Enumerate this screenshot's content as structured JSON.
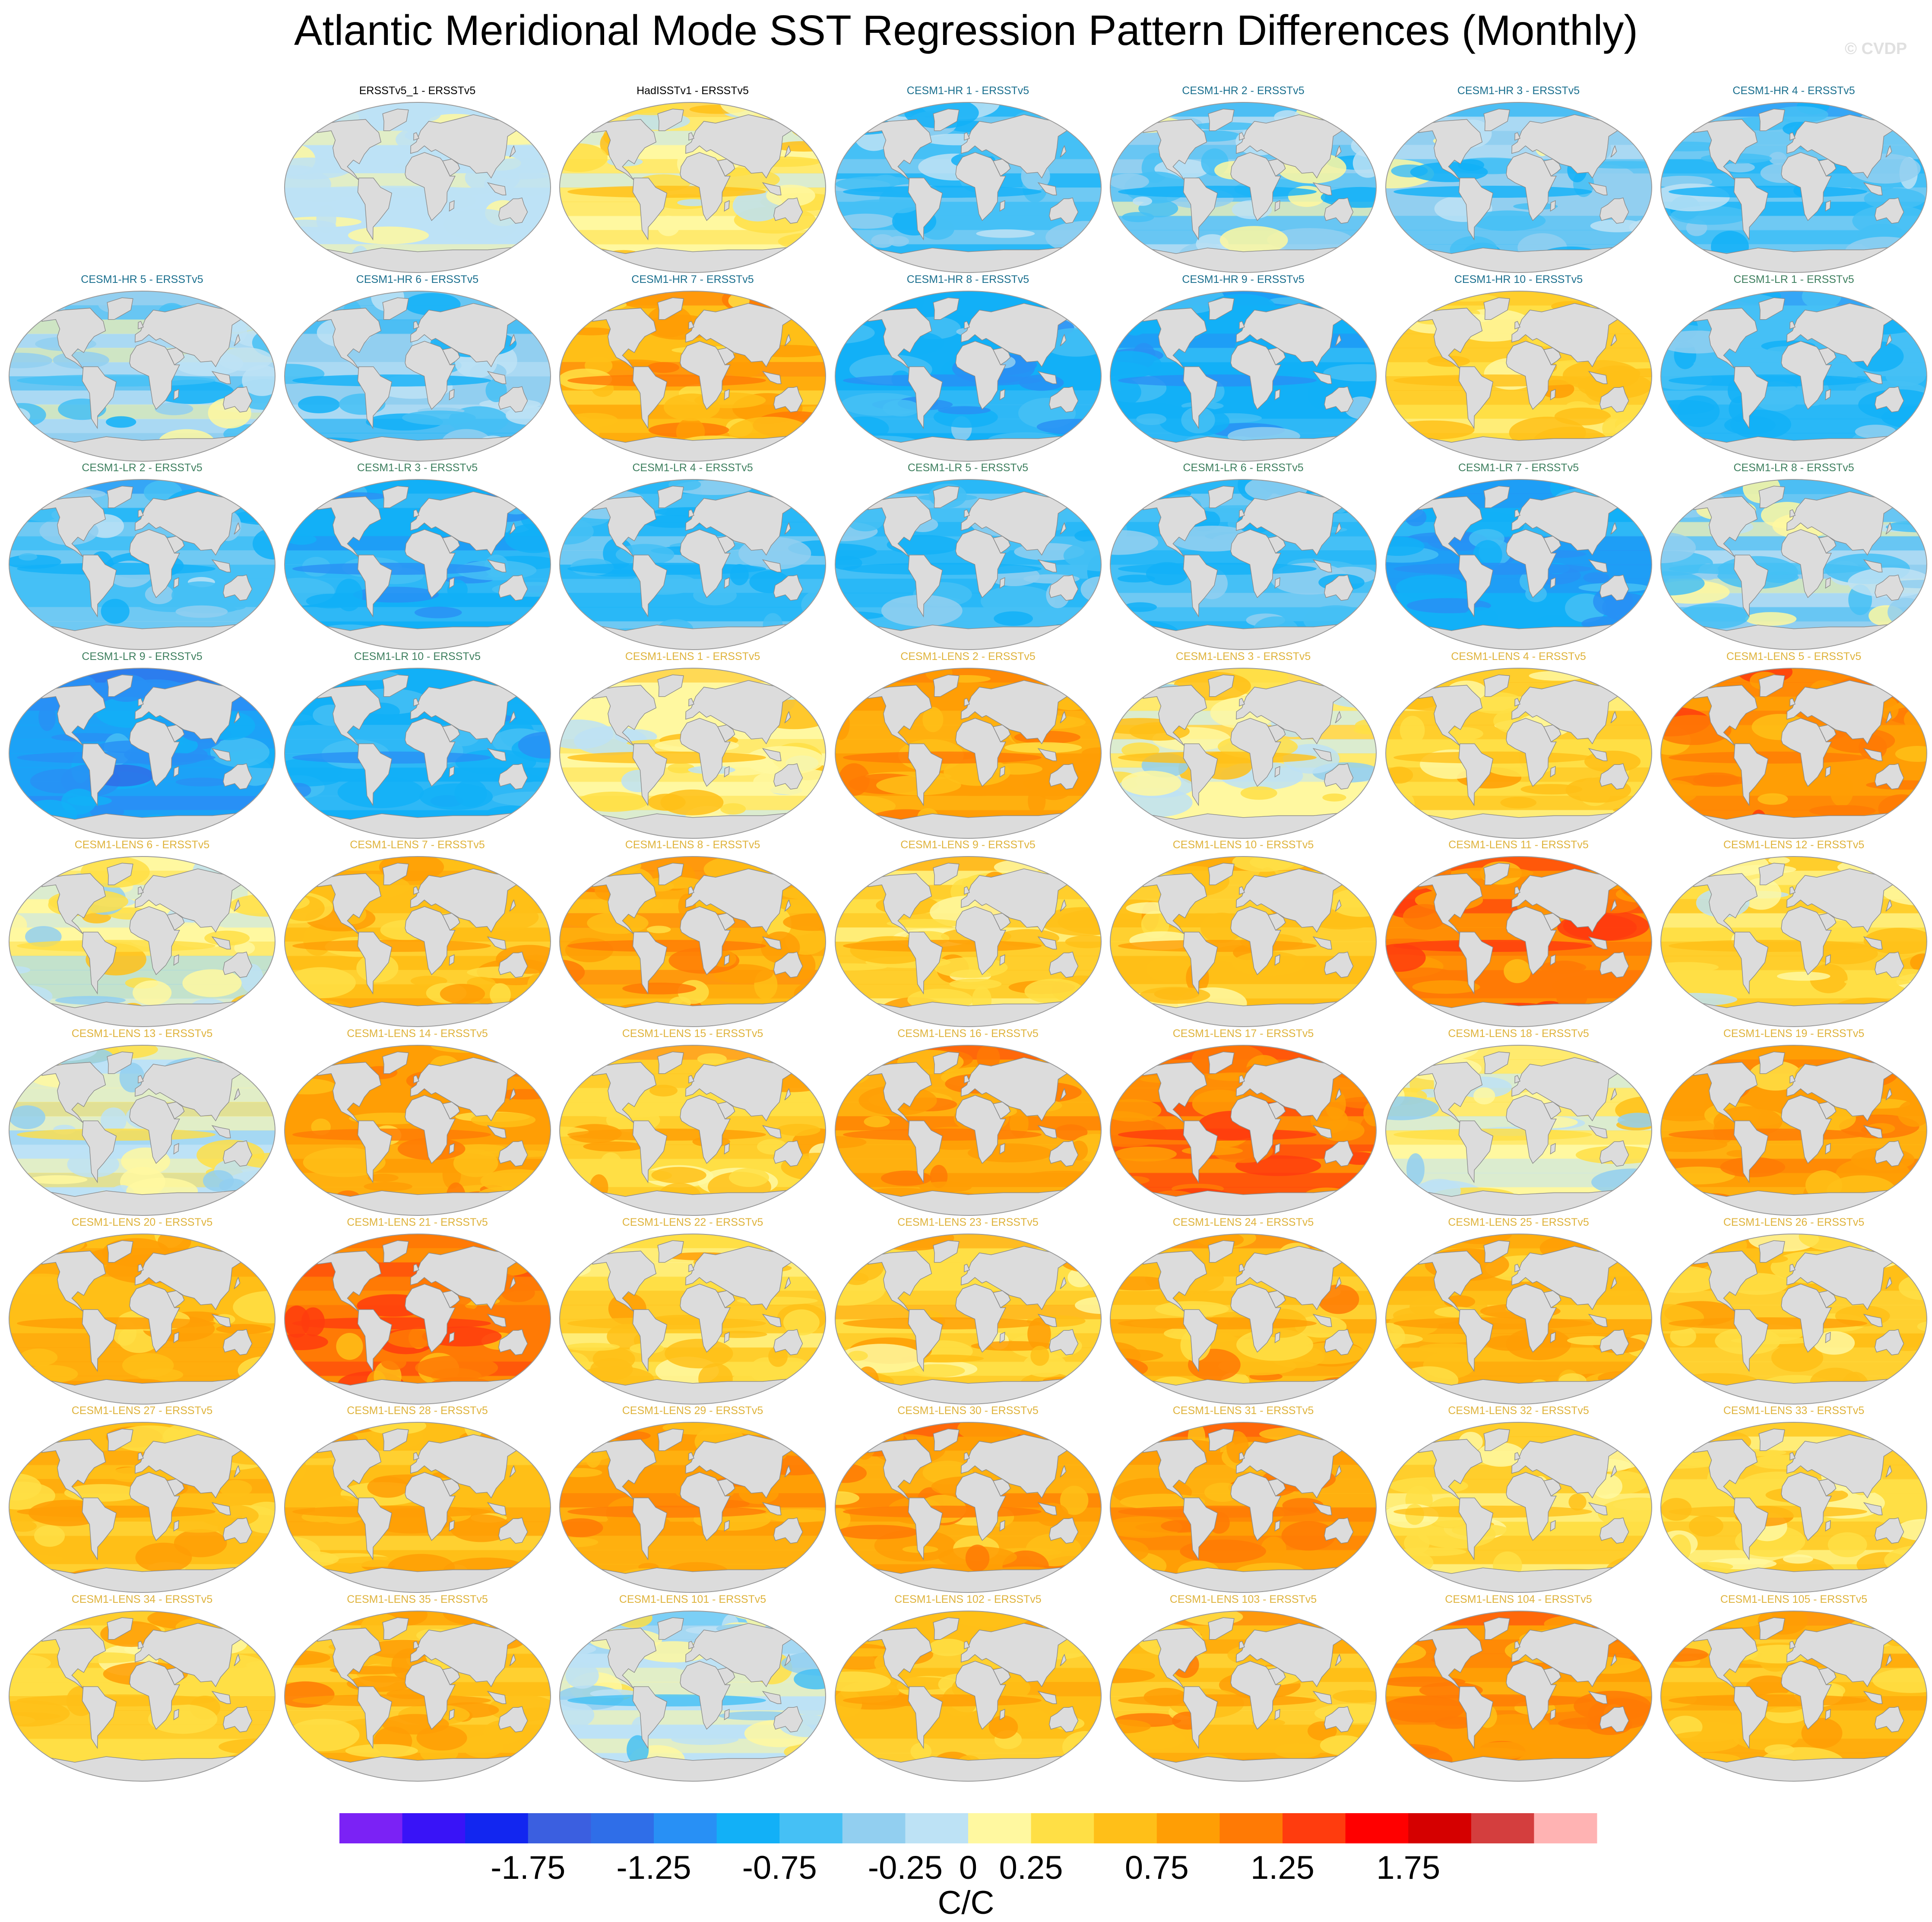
{
  "title": "Atlantic Meridional Mode SST Regression Pattern Differences (Monthly)",
  "watermark": "© CVDP",
  "panels": [
    {
      "label": "ERSSTv5_1 - ERSSTv5",
      "group": "obs",
      "bias": -0.05,
      "spread": 0.15
    },
    {
      "label": "HadISSTv1 - ERSSTv5",
      "group": "obs",
      "bias": 0.25,
      "spread": 0.3
    },
    {
      "label": "CESM1-HR 1 - ERSSTv5",
      "group": "hr",
      "bias": -0.55,
      "spread": 0.35
    },
    {
      "label": "CESM1-HR 2 - ERSSTv5",
      "group": "hr",
      "bias": -0.35,
      "spread": 0.45
    },
    {
      "label": "CESM1-HR 3 - ERSSTv5",
      "group": "hr",
      "bias": -0.4,
      "spread": 0.4
    },
    {
      "label": "CESM1-HR 4 - ERSSTv5",
      "group": "hr",
      "bias": -0.6,
      "spread": 0.35
    },
    {
      "label": "CESM1-HR 5 - ERSSTv5",
      "group": "hr",
      "bias": -0.3,
      "spread": 0.45
    },
    {
      "label": "CESM1-HR 6 - ERSSTv5",
      "group": "hr",
      "bias": -0.45,
      "spread": 0.4
    },
    {
      "label": "CESM1-HR 7 - ERSSTv5",
      "group": "hr",
      "bias": 0.75,
      "spread": 0.35
    },
    {
      "label": "CESM1-HR 8 - ERSSTv5",
      "group": "hr",
      "bias": -0.75,
      "spread": 0.3
    },
    {
      "label": "CESM1-HR 9 - ERSSTv5",
      "group": "hr",
      "bias": -0.8,
      "spread": 0.3
    },
    {
      "label": "CESM1-HR 10 - ERSSTv5",
      "group": "hr",
      "bias": 0.45,
      "spread": 0.3
    },
    {
      "label": "CESM1-LR 1 - ERSSTv5",
      "group": "lr",
      "bias": -0.7,
      "spread": 0.25
    },
    {
      "label": "CESM1-LR 2 - ERSSTv5",
      "group": "lr",
      "bias": -0.55,
      "spread": 0.3
    },
    {
      "label": "CESM1-LR 3 - ERSSTv5",
      "group": "lr",
      "bias": -0.85,
      "spread": 0.25
    },
    {
      "label": "CESM1-LR 4 - ERSSTv5",
      "group": "lr",
      "bias": -0.7,
      "spread": 0.25
    },
    {
      "label": "CESM1-LR 5 - ERSSTv5",
      "group": "lr",
      "bias": -0.65,
      "spread": 0.3
    },
    {
      "label": "CESM1-LR 6 - ERSSTv5",
      "group": "lr",
      "bias": -0.7,
      "spread": 0.25
    },
    {
      "label": "CESM1-LR 7 - ERSSTv5",
      "group": "lr",
      "bias": -0.95,
      "spread": 0.25
    },
    {
      "label": "CESM1-LR 8 - ERSSTv5",
      "group": "lr",
      "bias": -0.25,
      "spread": 0.4
    },
    {
      "label": "CESM1-LR 9 - ERSSTv5",
      "group": "lr",
      "bias": -1.0,
      "spread": 0.25
    },
    {
      "label": "CESM1-LR 10 - ERSSTv5",
      "group": "lr",
      "bias": -0.8,
      "spread": 0.25
    },
    {
      "label": "CESM1-LENS 1 - ERSSTv5",
      "group": "lens",
      "bias": 0.2,
      "spread": 0.35
    },
    {
      "label": "CESM1-LENS 2 - ERSSTv5",
      "group": "lens",
      "bias": 0.8,
      "spread": 0.3
    },
    {
      "label": "CESM1-LENS 3 - ERSSTv5",
      "group": "lens",
      "bias": 0.15,
      "spread": 0.4
    },
    {
      "label": "CESM1-LENS 4 - ERSSTv5",
      "group": "lens",
      "bias": 0.45,
      "spread": 0.3
    },
    {
      "label": "CESM1-LENS 5 - ERSSTv5",
      "group": "lens",
      "bias": 0.95,
      "spread": 0.3
    },
    {
      "label": "CESM1-LENS 6 - ERSSTv5",
      "group": "lens",
      "bias": 0.05,
      "spread": 0.45
    },
    {
      "label": "CESM1-LENS 7 - ERSSTv5",
      "group": "lens",
      "bias": 0.6,
      "spread": 0.25
    },
    {
      "label": "CESM1-LENS 8 - ERSSTv5",
      "group": "lens",
      "bias": 0.75,
      "spread": 0.3
    },
    {
      "label": "CESM1-LENS 9 - ERSSTv5",
      "group": "lens",
      "bias": 0.45,
      "spread": 0.35
    },
    {
      "label": "CESM1-LENS 10 - ERSSTv5",
      "group": "lens",
      "bias": 0.55,
      "spread": 0.3
    },
    {
      "label": "CESM1-LENS 11 - ERSSTv5",
      "group": "lens",
      "bias": 1.05,
      "spread": 0.35
    },
    {
      "label": "CESM1-LENS 12 - ERSSTv5",
      "group": "lens",
      "bias": 0.35,
      "spread": 0.35
    },
    {
      "label": "CESM1-LENS 13 - ERSSTv5",
      "group": "lens",
      "bias": 0.0,
      "spread": 0.4
    },
    {
      "label": "CESM1-LENS 14 - ERSSTv5",
      "group": "lens",
      "bias": 0.8,
      "spread": 0.3
    },
    {
      "label": "CESM1-LENS 15 - ERSSTv5",
      "group": "lens",
      "bias": 0.5,
      "spread": 0.3
    },
    {
      "label": "CESM1-LENS 16 - ERSSTv5",
      "group": "lens",
      "bias": 0.85,
      "spread": 0.3
    },
    {
      "label": "CESM1-LENS 17 - ERSSTv5",
      "group": "lens",
      "bias": 1.1,
      "spread": 0.3
    },
    {
      "label": "CESM1-LENS 18 - ERSSTv5",
      "group": "lens",
      "bias": 0.1,
      "spread": 0.4
    },
    {
      "label": "CESM1-LENS 19 - ERSSTv5",
      "group": "lens",
      "bias": 0.8,
      "spread": 0.3
    },
    {
      "label": "CESM1-LENS 20 - ERSSTv5",
      "group": "lens",
      "bias": 0.65,
      "spread": 0.25
    },
    {
      "label": "CESM1-LENS 21 - ERSSTv5",
      "group": "lens",
      "bias": 1.05,
      "spread": 0.3
    },
    {
      "label": "CESM1-LENS 22 - ERSSTv5",
      "group": "lens",
      "bias": 0.45,
      "spread": 0.3
    },
    {
      "label": "CESM1-LENS 23 - ERSSTv5",
      "group": "lens",
      "bias": 0.5,
      "spread": 0.3
    },
    {
      "label": "CESM1-LENS 24 - ERSSTv5",
      "group": "lens",
      "bias": 0.7,
      "spread": 0.3
    },
    {
      "label": "CESM1-LENS 25 - ERSSTv5",
      "group": "lens",
      "bias": 0.65,
      "spread": 0.3
    },
    {
      "label": "CESM1-LENS 26 - ERSSTv5",
      "group": "lens",
      "bias": 0.55,
      "spread": 0.3
    },
    {
      "label": "CESM1-LENS 27 - ERSSTv5",
      "group": "lens",
      "bias": 0.6,
      "spread": 0.25
    },
    {
      "label": "CESM1-LENS 28 - ERSSTv5",
      "group": "lens",
      "bias": 0.6,
      "spread": 0.25
    },
    {
      "label": "CESM1-LENS 29 - ERSSTv5",
      "group": "lens",
      "bias": 0.85,
      "spread": 0.3
    },
    {
      "label": "CESM1-LENS 30 - ERSSTv5",
      "group": "lens",
      "bias": 0.8,
      "spread": 0.3
    },
    {
      "label": "CESM1-LENS 31 - ERSSTv5",
      "group": "lens",
      "bias": 0.85,
      "spread": 0.3
    },
    {
      "label": "CESM1-LENS 32 - ERSSTv5",
      "group": "lens",
      "bias": 0.35,
      "spread": 0.3
    },
    {
      "label": "CESM1-LENS 33 - ERSSTv5",
      "group": "lens",
      "bias": 0.4,
      "spread": 0.3
    },
    {
      "label": "CESM1-LENS 34 - ERSSTv5",
      "group": "lens",
      "bias": 0.5,
      "spread": 0.25
    },
    {
      "label": "CESM1-LENS 35 - ERSSTv5",
      "group": "lens",
      "bias": 0.65,
      "spread": 0.3
    },
    {
      "label": "CESM1-LENS 101 - ERSSTv5",
      "group": "lens",
      "bias": -0.15,
      "spread": 0.4
    },
    {
      "label": "CESM1-LENS 102 - ERSSTv5",
      "group": "lens",
      "bias": 0.6,
      "spread": 0.25
    },
    {
      "label": "CESM1-LENS 103 - ERSSTv5",
      "group": "lens",
      "bias": 0.7,
      "spread": 0.3
    },
    {
      "label": "CESM1-LENS 104 - ERSSTv5",
      "group": "lens",
      "bias": 0.9,
      "spread": 0.3
    },
    {
      "label": "CESM1-LENS 105 - ERSSTv5",
      "group": "lens",
      "bias": 0.7,
      "spread": 0.3
    }
  ],
  "group_label_colors": {
    "obs": "#000000",
    "hr": "#1a6f8e",
    "lr": "#3d7f5e",
    "lens": "#dfb33c"
  },
  "colorbar": {
    "units": "C/C",
    "colors": [
      "#7b22f5",
      "#3913f7",
      "#1226f0",
      "#3b5fe0",
      "#2f6ee8",
      "#2890f5",
      "#12b0f7",
      "#45c0f5",
      "#92cff0",
      "#bde2f5",
      "#fff8a0",
      "#ffdf45",
      "#ffbf18",
      "#ff9e05",
      "#ff7a05",
      "#ff3c0e",
      "#ff0000",
      "#d50000",
      "#d43e3e",
      "#ffb3b3"
    ],
    "levels": [
      -2.25,
      -2.0,
      -1.75,
      -1.5,
      -1.25,
      -1.0,
      -0.75,
      -0.5,
      -0.25,
      0,
      0.25,
      0.5,
      0.75,
      1.0,
      1.25,
      1.5,
      1.75,
      2.0,
      2.25
    ],
    "tick_labels": [
      "-1.75",
      "-1.25",
      "-0.75",
      "-0.25",
      "0",
      "0.25",
      "0.75",
      "1.25",
      "1.75"
    ],
    "tick_values": [
      -1.75,
      -1.25,
      -0.75,
      -0.25,
      0,
      0.25,
      0.75,
      1.25,
      1.75
    ]
  },
  "land_color": "#dcdcdc"
}
